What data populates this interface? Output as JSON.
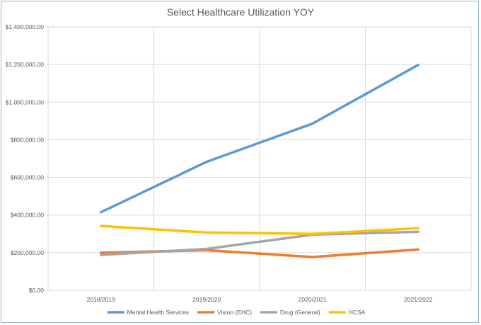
{
  "chart_data": {
    "type": "line",
    "title": "Select Healthcare Utilization YOY",
    "xlabel": "",
    "ylabel": "",
    "categories": [
      "2018/2019",
      "2019/2020",
      "2020/2021",
      "2021/2022"
    ],
    "ylim": [
      0,
      1400000
    ],
    "ytick_values": [
      0,
      200000,
      400000,
      600000,
      800000,
      1000000,
      1200000,
      1400000
    ],
    "ytick_labels": [
      "$0.00",
      "$200,000.00",
      "$400,000.00",
      "$600,000.00",
      "$800,000.00",
      "$1,000,000.00",
      "$1,200,000.00",
      "$1,400,000.00"
    ],
    "grid": true,
    "legend_position": "bottom",
    "series": [
      {
        "name": "Mental Health Services",
        "color": "#5b9bd5",
        "values": [
          415000,
          683000,
          886000,
          1198000
        ]
      },
      {
        "name": "Vision (EHC)",
        "color": "#ed7d31",
        "values": [
          200000,
          213000,
          177000,
          217000
        ]
      },
      {
        "name": "Drug (General)",
        "color": "#a5a5a5",
        "values": [
          188000,
          220000,
          296000,
          311000
        ]
      },
      {
        "name": "HCSA",
        "color": "#ffc000",
        "values": [
          342000,
          307000,
          300000,
          330000
        ]
      }
    ]
  }
}
